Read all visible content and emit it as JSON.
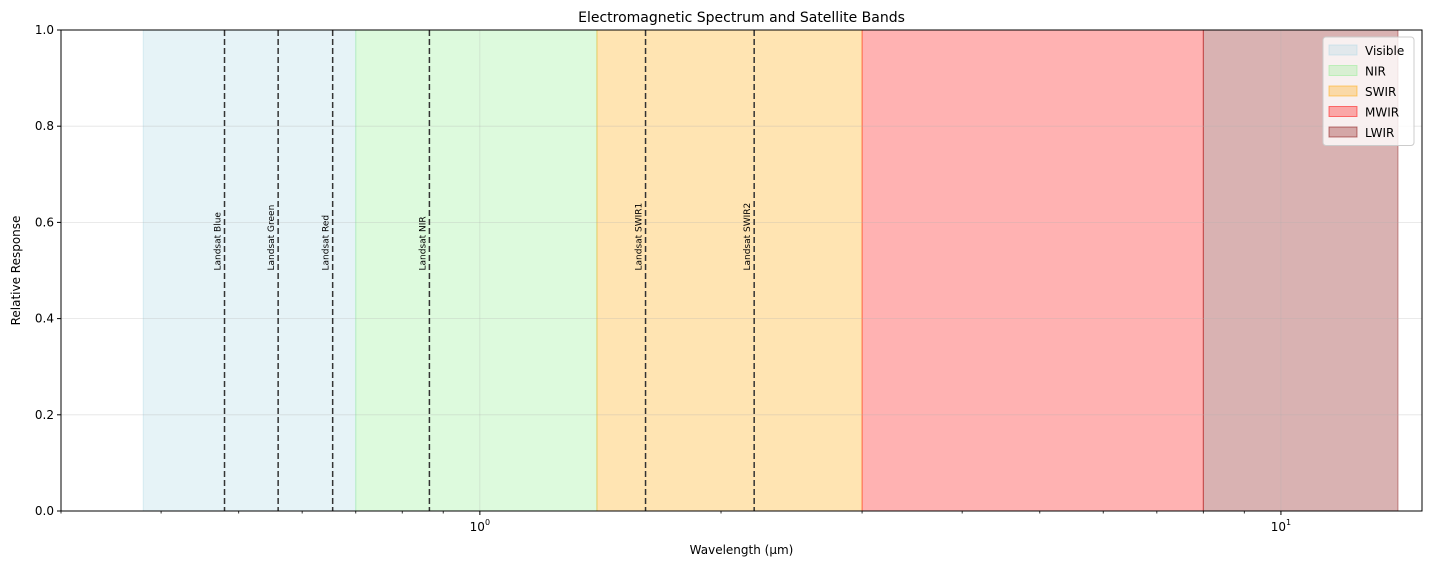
{
  "chart_data": {
    "type": "area",
    "title": "Electromagnetic Spectrum and Satellite Bands",
    "xlabel": "Wavelength (μm)",
    "ylabel": "Relative Response",
    "xscale": "log",
    "xlim": [
      0.3,
      15
    ],
    "ylim": [
      0,
      1
    ],
    "grid": true,
    "legend_position": "upper-right",
    "x_major_ticks": [
      {
        "value": 1,
        "base": "10",
        "exp": "0"
      },
      {
        "value": 10,
        "base": "10",
        "exp": "1"
      }
    ],
    "y_ticks": [
      {
        "value": 0.0,
        "label": "0.0"
      },
      {
        "value": 0.2,
        "label": "0.2"
      },
      {
        "value": 0.4,
        "label": "0.4"
      },
      {
        "value": 0.6,
        "label": "0.6"
      },
      {
        "value": 0.8,
        "label": "0.8"
      },
      {
        "value": 1.0,
        "label": "1.0"
      }
    ],
    "regions": [
      {
        "name": "Visible",
        "x_start": 0.38,
        "x_end": 0.7,
        "color": "#add8e6",
        "alpha": 0.3
      },
      {
        "name": "NIR",
        "x_start": 0.7,
        "x_end": 1.4,
        "color": "#90ee90",
        "alpha": 0.3
      },
      {
        "name": "SWIR",
        "x_start": 1.4,
        "x_end": 3.0,
        "color": "#ffa500",
        "alpha": 0.3
      },
      {
        "name": "MWIR",
        "x_start": 3.0,
        "x_end": 8.0,
        "color": "#ff0000",
        "alpha": 0.3
      },
      {
        "name": "LWIR",
        "x_start": 8.0,
        "x_end": 14.0,
        "color": "#800000",
        "alpha": 0.3
      }
    ],
    "bands": [
      {
        "name": "Landsat Blue",
        "x": 0.48
      },
      {
        "name": "Landsat Green",
        "x": 0.56
      },
      {
        "name": "Landsat Red",
        "x": 0.655
      },
      {
        "name": "Landsat NIR",
        "x": 0.865
      },
      {
        "name": "Landsat SWIR1",
        "x": 1.61
      },
      {
        "name": "Landsat SWIR2",
        "x": 2.2
      }
    ]
  }
}
